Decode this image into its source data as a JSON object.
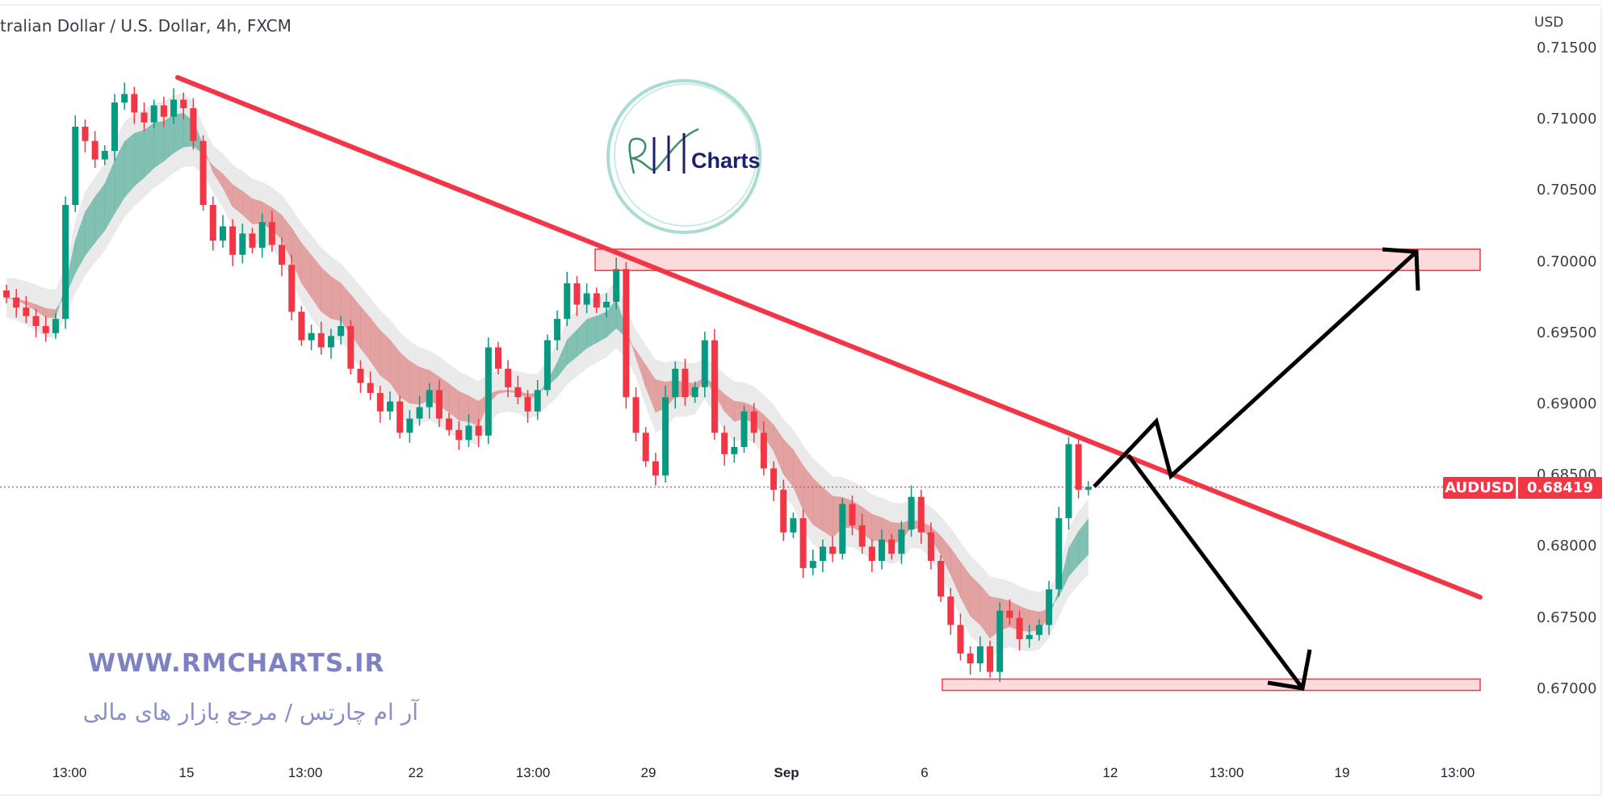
{
  "header": {
    "title": "tralian Dollar / U.S. Dollar, 4h, FXCM",
    "currency": "USD"
  },
  "symbol_label": {
    "symbol": "AUDUSD",
    "last_price": "0.68419"
  },
  "watermark": {
    "site": "WWW.RMCHARTS.IR",
    "tagline": "آر ام چارتس / مرجع بازار های مالی",
    "logo_text": "Charts"
  },
  "colors": {
    "up": "#089981",
    "down": "#f23645",
    "trendline": "#f23645",
    "zone": "#f23645",
    "arrows": "#000000",
    "ribbon_up": "#5fb3a0",
    "ribbon_down": "#e08a8a",
    "band": "#e6e6e6"
  },
  "chart_data": {
    "type": "candlestick",
    "interval": "4h",
    "ylim": [
      0.6645,
      0.7165
    ],
    "y_ticks": [
      "0.71500",
      "0.71000",
      "0.70500",
      "0.70000",
      "0.69500",
      "0.69000",
      "0.68500",
      "0.68000",
      "0.67500",
      "0.67000"
    ],
    "x_ticks": [
      "13:00",
      "15",
      "13:00",
      "22",
      "13:00",
      "29",
      "Sep",
      "6",
      "12",
      "13:00",
      "19",
      "13:00"
    ],
    "first_open": 0.698,
    "closes": [
      0.6975,
      0.6968,
      0.6962,
      0.6955,
      0.695,
      0.696,
      0.704,
      0.7095,
      0.7085,
      0.7072,
      0.7078,
      0.7112,
      0.7118,
      0.7105,
      0.7098,
      0.711,
      0.7102,
      0.7114,
      0.7108,
      0.7085,
      0.704,
      0.7015,
      0.7025,
      0.7005,
      0.702,
      0.701,
      0.7028,
      0.7012,
      0.6998,
      0.6965,
      0.6945,
      0.695,
      0.694,
      0.6948,
      0.6955,
      0.6925,
      0.6915,
      0.6908,
      0.6895,
      0.6902,
      0.688,
      0.689,
      0.6898,
      0.691,
      0.689,
      0.6882,
      0.6875,
      0.6885,
      0.6878,
      0.694,
      0.6925,
      0.6912,
      0.6905,
      0.6895,
      0.691,
      0.6945,
      0.696,
      0.6985,
      0.697,
      0.6978,
      0.6968,
      0.6972,
      0.6995,
      0.6905,
      0.688,
      0.686,
      0.685,
      0.6905,
      0.6925,
      0.6905,
      0.6912,
      0.6945,
      0.688,
      0.6865,
      0.687,
      0.6895,
      0.688,
      0.6855,
      0.684,
      0.681,
      0.682,
      0.6785,
      0.679,
      0.68,
      0.6795,
      0.683,
      0.6815,
      0.68,
      0.679,
      0.6805,
      0.6795,
      0.6812,
      0.6835,
      0.681,
      0.679,
      0.6765,
      0.6745,
      0.6725,
      0.6718,
      0.673,
      0.6712,
      0.6755,
      0.675,
      0.6735,
      0.6738,
      0.6745,
      0.677,
      0.682,
      0.6872,
      0.684,
      0.6842
    ],
    "last_price": 0.68419,
    "trendline": {
      "start_price": 0.71296,
      "end_price": 0.67645
    },
    "resistance_zone": [
      0.6994,
      0.7009
    ],
    "support_zone": [
      0.6699,
      0.6707
    ],
    "grid": false
  }
}
